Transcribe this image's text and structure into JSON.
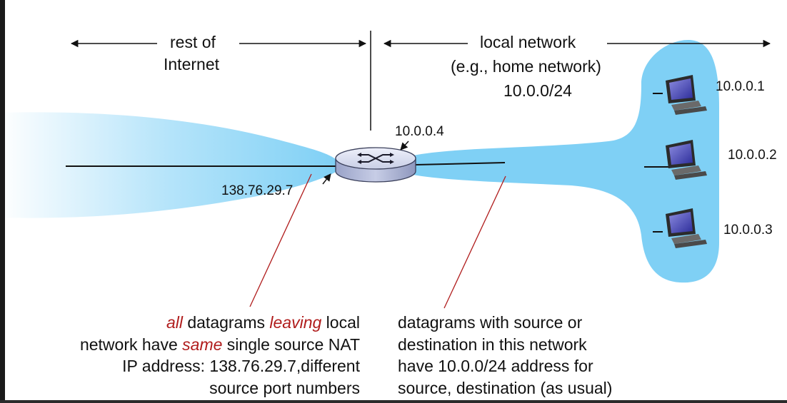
{
  "regions": {
    "internet_label": [
      "rest of",
      "Internet"
    ],
    "local_label": [
      "local network",
      "(e.g., home network)",
      "10.0.0/24"
    ]
  },
  "router": {
    "lan_ip": "10.0.0.4",
    "wan_ip": "138.76.29.7"
  },
  "hosts": [
    {
      "ip": "10.0.0.1"
    },
    {
      "ip": "10.0.0.2"
    },
    {
      "ip": "10.0.0.3"
    }
  ],
  "notes": {
    "left": {
      "line1": {
        "w1": "all",
        "w2": " datagrams ",
        "w3": "leaving",
        "w4": " local"
      },
      "line2": {
        "w1": "network have ",
        "w2": "same",
        "w3": " single source NAT"
      },
      "line3": "IP address: 138.76.29.7,different",
      "line4": "source port numbers"
    },
    "right": [
      "datagrams with source or",
      "destination in this network",
      "have 10.0.0/24 address for",
      "source, destination (as usual)"
    ]
  },
  "colors": {
    "cloud": "#7fd0f5",
    "pointer": "#b01c1c",
    "router_body": "#c9cfe6",
    "accent_text": "#b01c1c"
  }
}
